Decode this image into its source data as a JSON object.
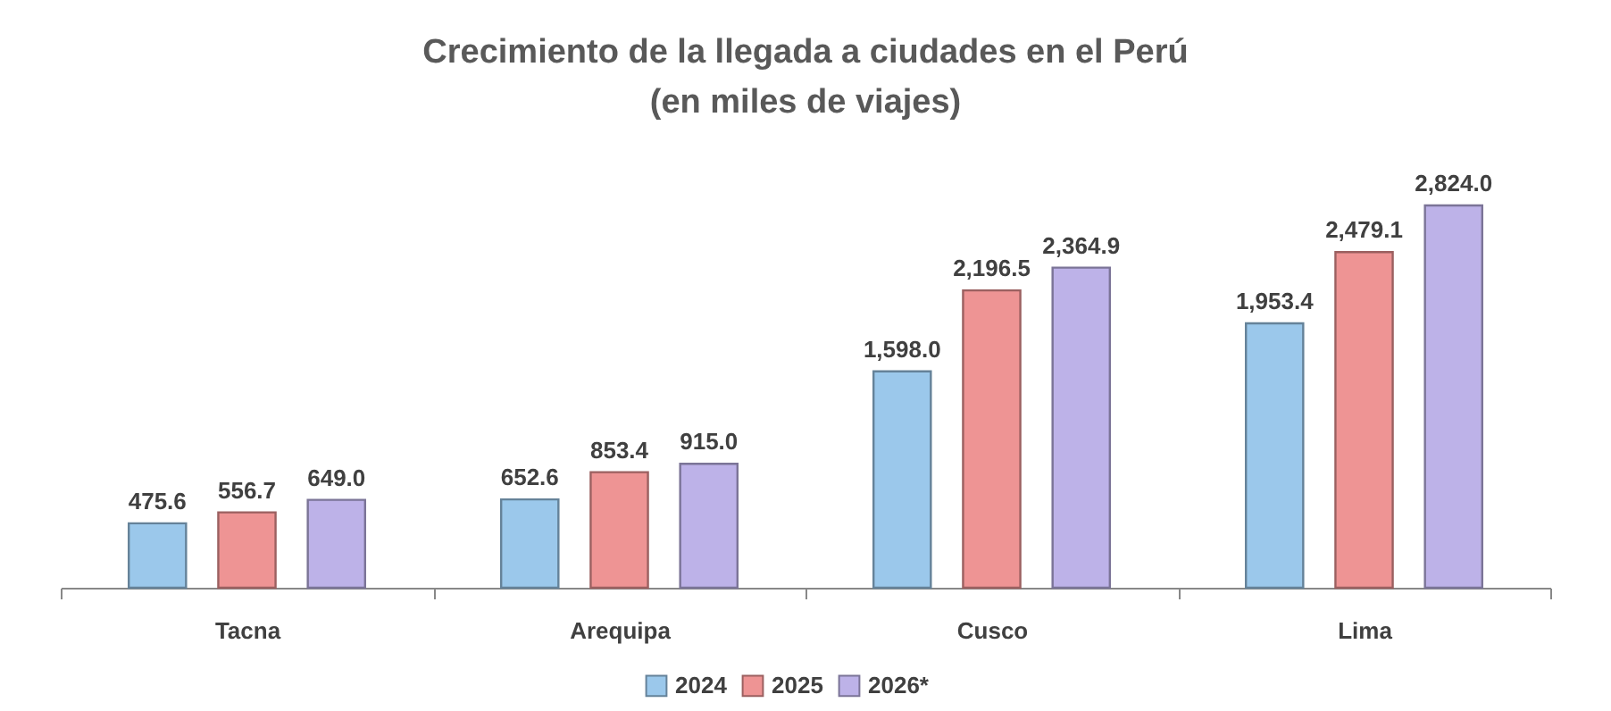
{
  "chart_data": {
    "type": "bar",
    "title": "Crecimiento de la llegada a ciudades en el Perú\n(en miles de viajes)",
    "categories": [
      "Tacna",
      "Arequipa",
      "Cusco",
      "Lima"
    ],
    "series": [
      {
        "name": "2024",
        "color": "#9bc8eb",
        "values": [
          475.6,
          652.6,
          1598.0,
          1953.4
        ],
        "value_labels": [
          "475.6",
          "652.6",
          "1,598.0",
          "1,953.4"
        ]
      },
      {
        "name": "2025",
        "color": "#ee9494",
        "values": [
          556.7,
          853.4,
          2196.5,
          2479.1
        ],
        "value_labels": [
          "556.7",
          "853.4",
          "2,196.5",
          "2,479.1"
        ]
      },
      {
        "name": "2026*",
        "color": "#bdb2e8",
        "values": [
          649.0,
          915.0,
          2364.9,
          2824.0
        ],
        "value_labels": [
          "649.0",
          "915.0",
          "2,364.9",
          "2,824.0"
        ]
      }
    ],
    "legend": "bottom",
    "grid": false
  }
}
